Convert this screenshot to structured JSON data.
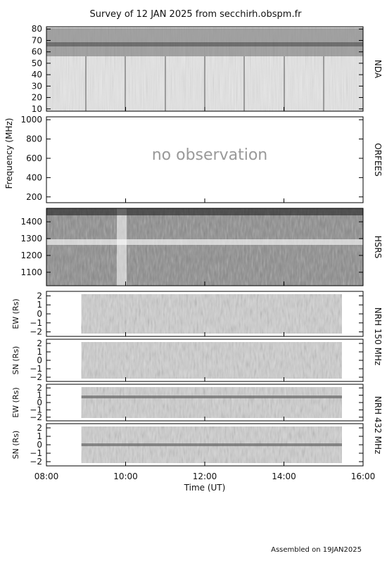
{
  "title": "Survey of 12 JAN 2025 from secchirh.obspm.fr",
  "footer": "Assembled on 19JAN2025",
  "colors": {
    "background": "#ffffff",
    "frame": "#000000",
    "text": "#111111",
    "placeholder": "#999999"
  },
  "chart_data": {
    "type": "heatmap",
    "xlabel": "Time (UT)",
    "xticks": [
      "08:00",
      "10:00",
      "12:00",
      "14:00",
      "16:00"
    ],
    "xlim": [
      "08:00",
      "16:00"
    ],
    "freq_axis_label": "Frequency (MHz)",
    "panels": [
      {
        "name": "NDA",
        "ylabel": "",
        "yticks": [
          "10",
          "20",
          "30",
          "40",
          "50",
          "60",
          "70",
          "80"
        ],
        "ylim": [
          8,
          82
        ],
        "observed": true
      },
      {
        "name": "ORFEES",
        "ylabel": "",
        "yticks": [
          "200",
          "400",
          "600",
          "800",
          "1000"
        ],
        "ylim": [
          140,
          1030
        ],
        "observed": false,
        "message": "no observation"
      },
      {
        "name": "HSRS",
        "ylabel": "",
        "yticks": [
          "1100",
          "1200",
          "1300",
          "1400"
        ],
        "ylim": [
          1020,
          1480
        ],
        "observed": true
      },
      {
        "name": "NRH 150 MHz",
        "ylabel": "EW (Rs)",
        "yticks": [
          "2",
          "1",
          "0",
          "−1",
          "−2"
        ],
        "ylim": [
          -2.5,
          2.5
        ],
        "observed": true,
        "coverage": [
          "08:53",
          "15:28"
        ]
      },
      {
        "name": "",
        "ylabel": "SN (Rs)",
        "yticks": [
          "2",
          "1",
          "0",
          "−1",
          "−2"
        ],
        "ylim": [
          -2.5,
          2.5
        ],
        "observed": true,
        "coverage": [
          "08:53",
          "15:28"
        ]
      },
      {
        "name": "NRH 432 MHz",
        "ylabel": "EW (Rs)",
        "yticks": [
          "2",
          "1",
          "0",
          "−1",
          "−2"
        ],
        "ylim": [
          -2.5,
          2.5
        ],
        "observed": true,
        "coverage": [
          "08:53",
          "15:28"
        ]
      },
      {
        "name": "",
        "ylabel": "SN (Rs)",
        "yticks": [
          "2",
          "1",
          "0",
          "−1",
          "−2"
        ],
        "ylim": [
          -2.5,
          2.5
        ],
        "observed": true,
        "coverage": [
          "08:53",
          "15:28"
        ]
      }
    ]
  }
}
